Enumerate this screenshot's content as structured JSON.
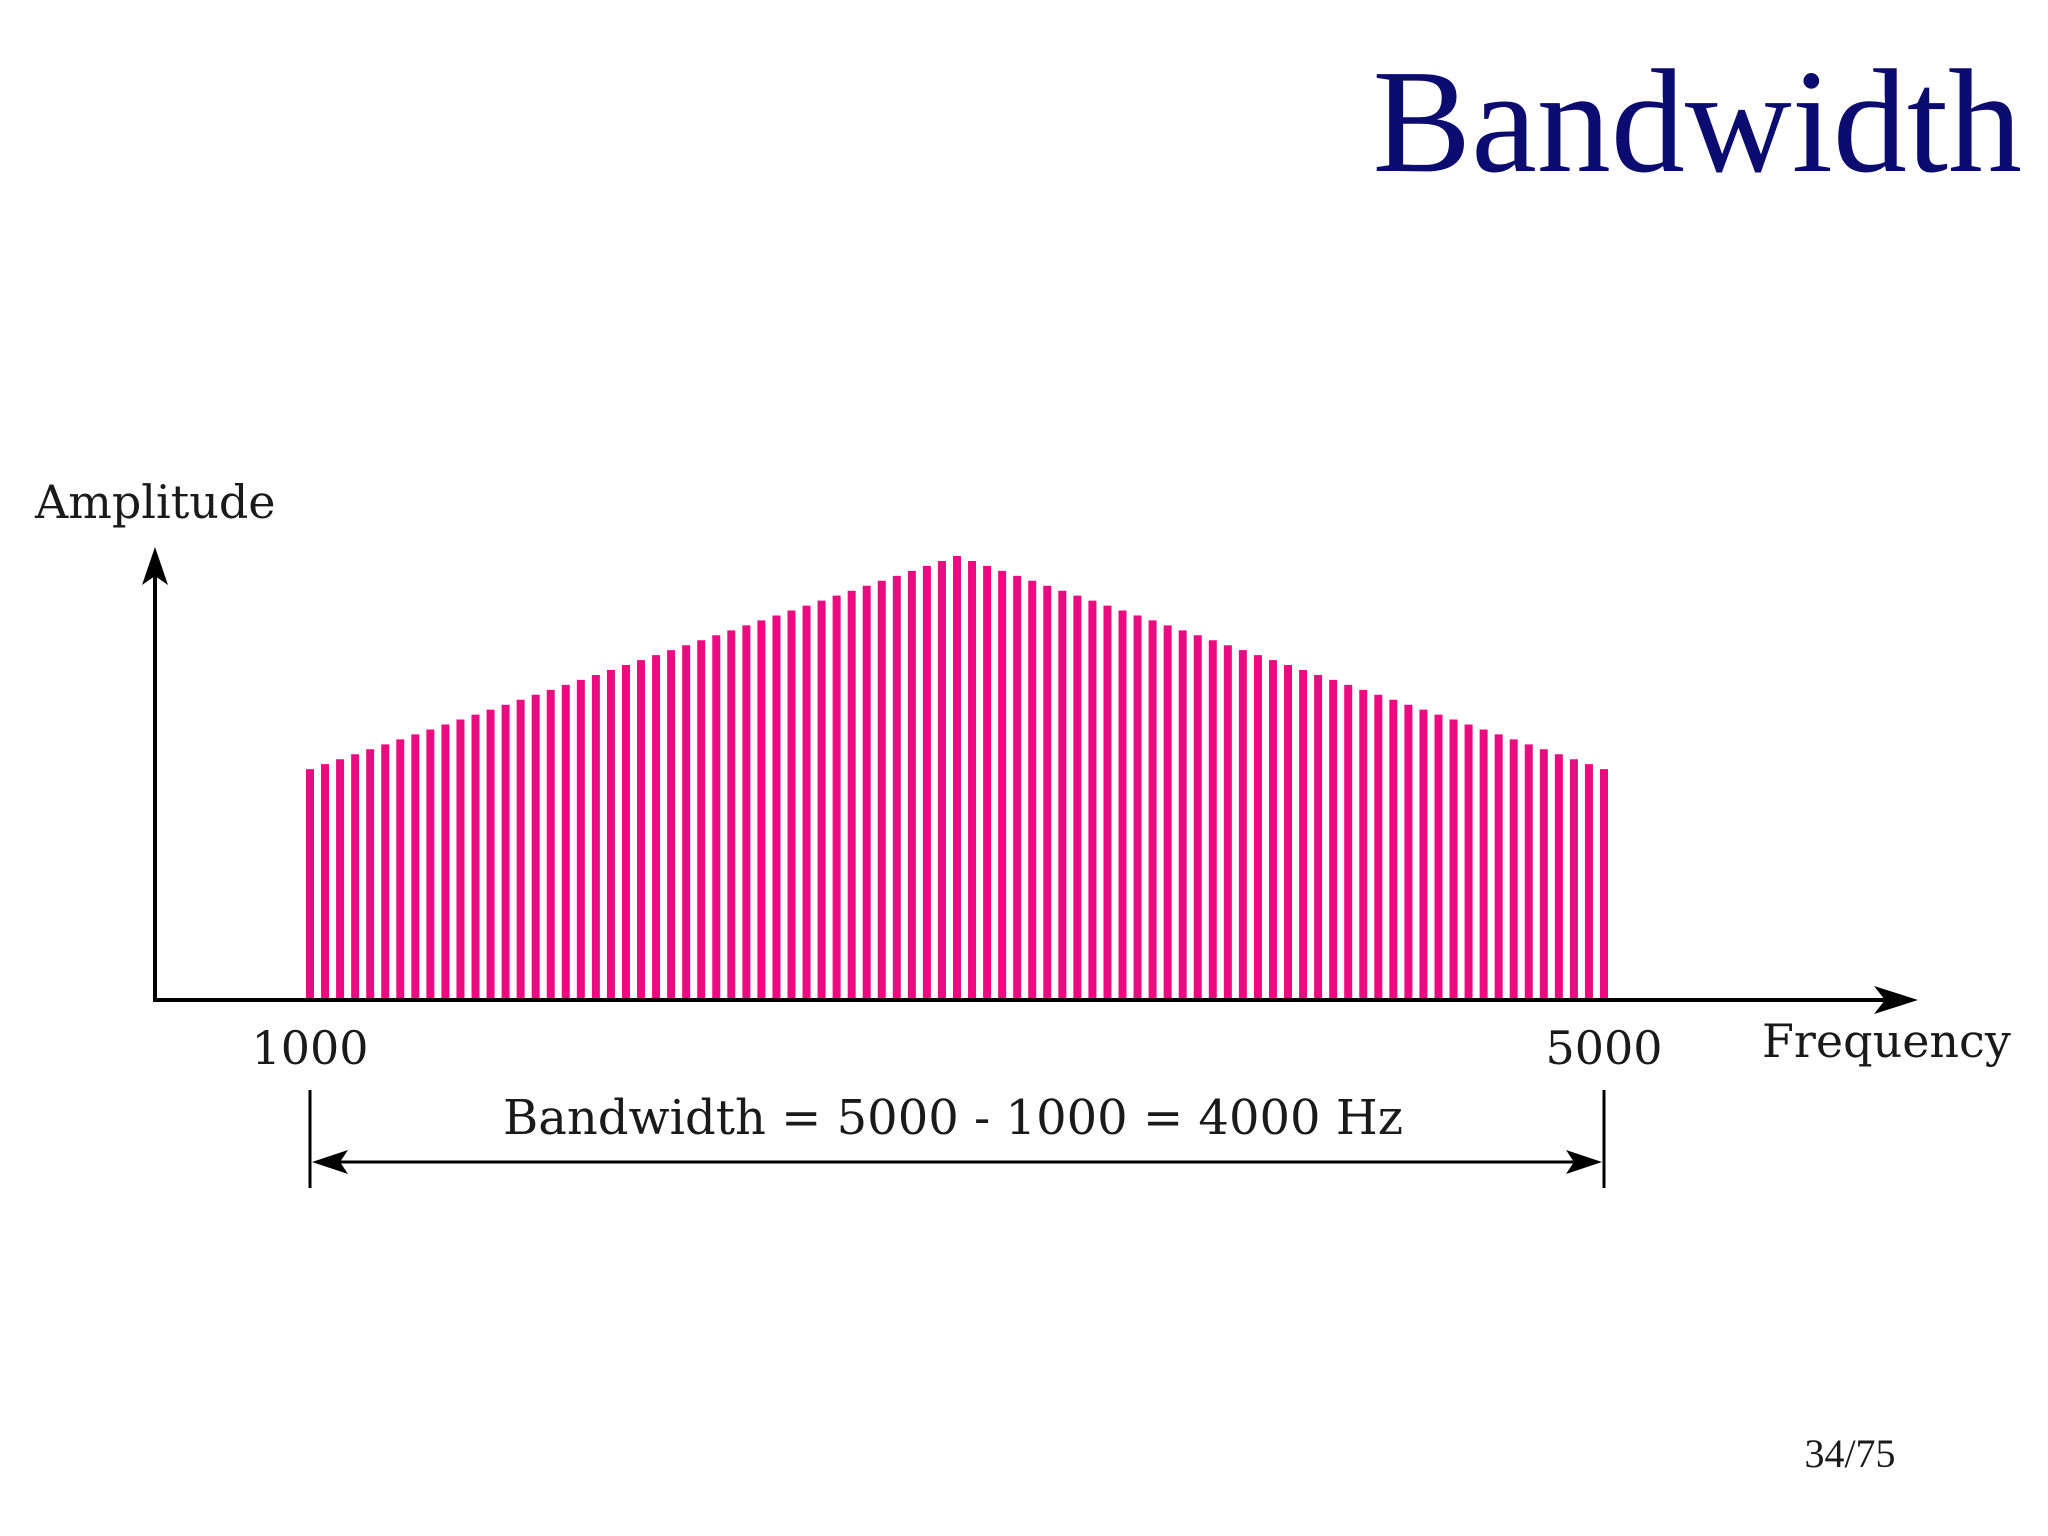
{
  "slide": {
    "title": "Bandwidth",
    "page_number": "34/75"
  },
  "diagram": {
    "y_axis_label": "Amplitude",
    "x_axis_label": "Frequency",
    "low_frequency_label": "1000",
    "high_frequency_label": "5000",
    "bandwidth_label": "Bandwidth = 5000 - 1000 = 4000 Hz"
  },
  "chart_data": {
    "type": "bar",
    "x_min": 1000,
    "x_max": 5000,
    "x_peak": 3000,
    "amplitude_at_edges": 0.52,
    "amplitude_at_peak": 1.0,
    "amplitude_max": 1.0,
    "line_count": 87,
    "bar_color": "#ec0a80"
  },
  "colors": {
    "title": "#0b0b70",
    "text": "#1a1a1a",
    "axis": "#000000",
    "spectrum": "#ec0a80"
  }
}
